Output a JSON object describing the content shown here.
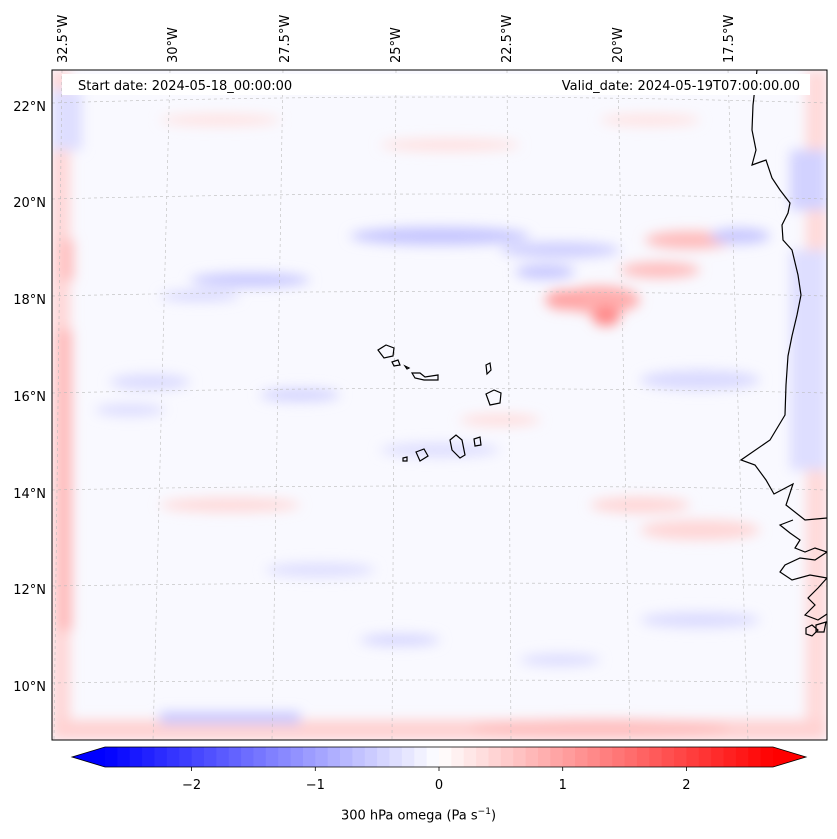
{
  "map": {
    "start_label": "Start date: 2024-05-18_00:00:00",
    "valid_label": "Valid_date: 2024-05-19T07:00:00.00",
    "lon_ticks": [
      "32.5°W",
      "30°W",
      "27.5°W",
      "25°W",
      "22.5°W",
      "20°W",
      "17.5°W"
    ],
    "lat_ticks": [
      "22°N",
      "20°N",
      "18°N",
      "16°N",
      "14°N",
      "12°N",
      "10°N"
    ],
    "field": "300 hPa omega"
  },
  "colorbar": {
    "label_text": "300 hPa omega (Pa s",
    "label_exp": "−1",
    "label_close": ")",
    "ticks": [
      "−2",
      "−1",
      "0",
      "1",
      "2"
    ],
    "colormap": "bwr",
    "min": -2.7,
    "max": 2.7,
    "colors": {
      "negative": "#0000ff",
      "zero": "#ffffff",
      "positive": "#ff0000"
    }
  }
}
